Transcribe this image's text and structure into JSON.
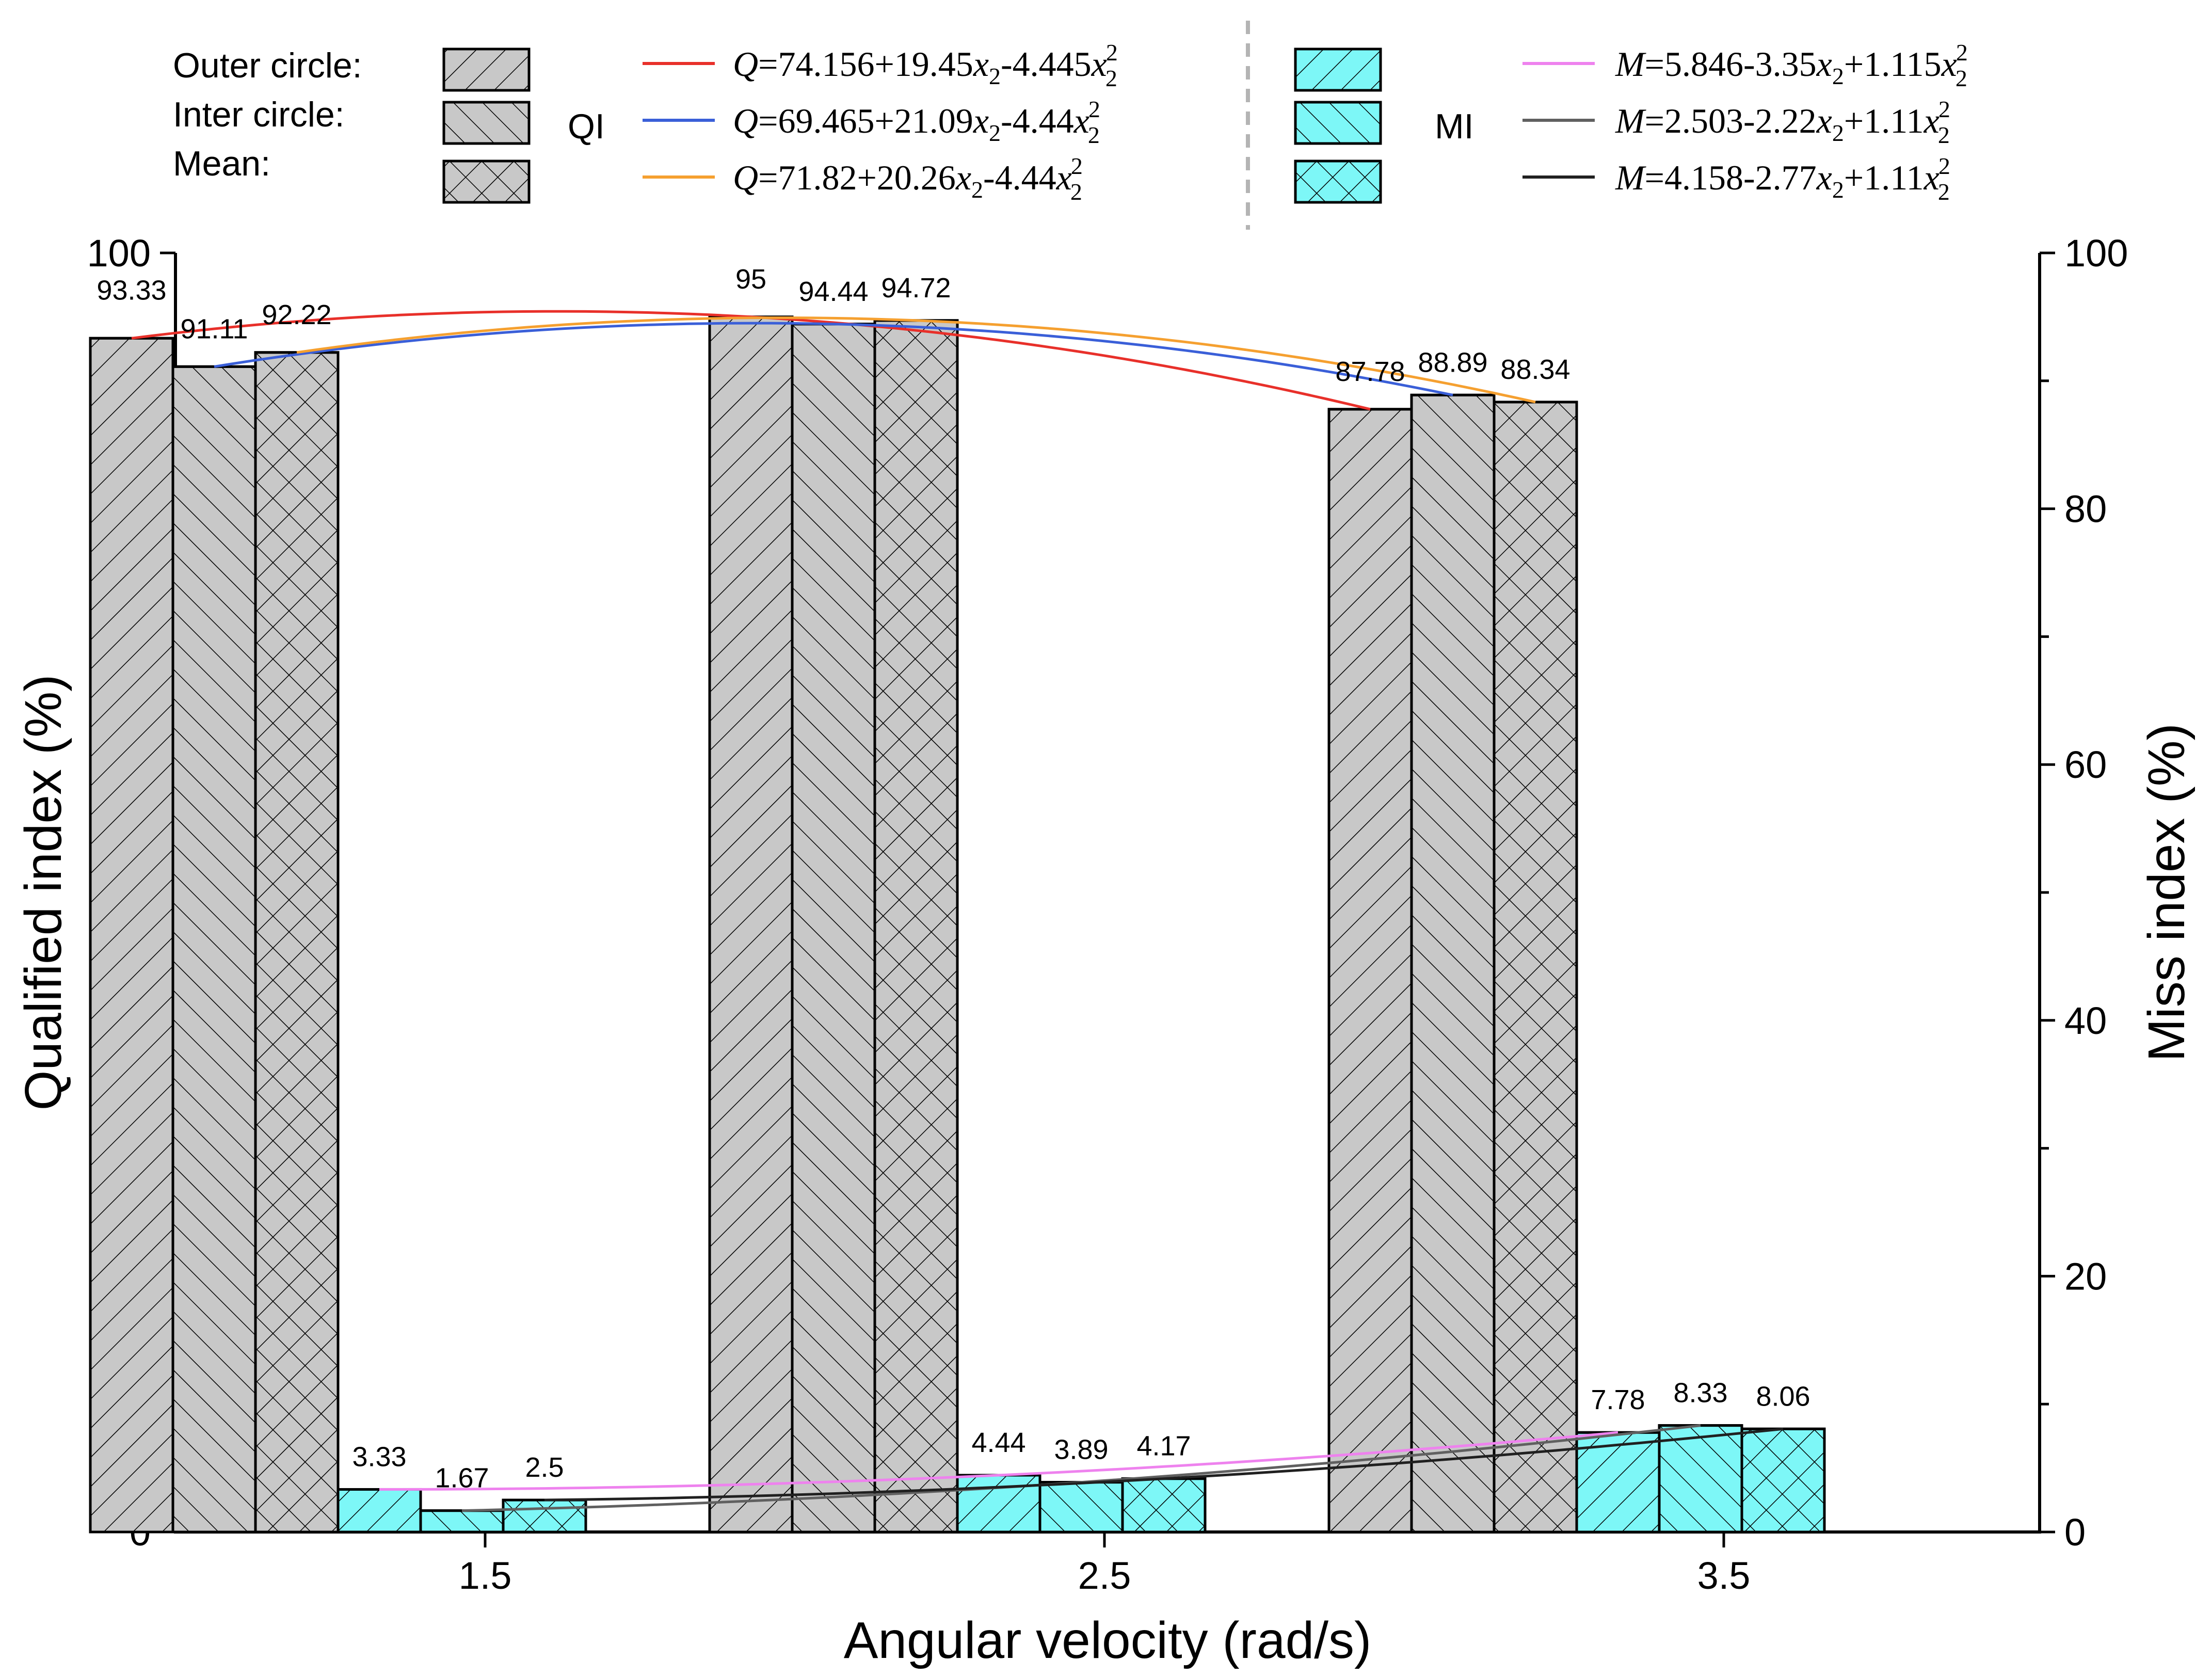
{
  "chart_data": {
    "type": "bar",
    "xlabel": "Angular velocity (rad/s)",
    "ylabel_left": "Qualified index (%)",
    "ylabel_right": "Miss index (%)",
    "ylim": [
      0,
      100
    ],
    "yticks": [
      "0",
      "20",
      "40",
      "60",
      "80",
      "100"
    ],
    "categories": [
      "1.5",
      "2.5",
      "3.5"
    ],
    "x_values": [
      1.5,
      2.5,
      3.5
    ],
    "series": [
      {
        "name": "QI Outer circle",
        "group": "QI",
        "pattern": "fwd",
        "values": [
          93.33,
          95,
          87.78
        ],
        "labels": [
          "93.33",
          "95",
          "87.78"
        ]
      },
      {
        "name": "QI Inter circle",
        "group": "QI",
        "pattern": "back",
        "values": [
          91.11,
          94.44,
          88.89
        ],
        "labels": [
          "91.11",
          "94.44",
          "88.89"
        ]
      },
      {
        "name": "QI Mean",
        "group": "QI",
        "pattern": "cross",
        "values": [
          92.22,
          94.72,
          88.34
        ],
        "labels": [
          "92.22",
          "94.72",
          "88.34"
        ]
      },
      {
        "name": "MI Outer circle",
        "group": "MI",
        "pattern": "fwd",
        "values": [
          3.33,
          4.44,
          7.78
        ],
        "labels": [
          "3.33",
          "4.44",
          "7.78"
        ]
      },
      {
        "name": "MI Inter circle",
        "group": "MI",
        "pattern": "back",
        "values": [
          1.67,
          3.89,
          8.33
        ],
        "labels": [
          "1.67",
          "3.89",
          "8.33"
        ]
      },
      {
        "name": "MI Mean",
        "group": "MI",
        "pattern": "cross",
        "values": [
          2.5,
          4.17,
          8.06
        ],
        "labels": [
          "2.5",
          "4.17",
          "8.06"
        ]
      }
    ],
    "fits": [
      {
        "var": "Q",
        "rhs": "=74.156+19.45",
        "mid": "-4.445",
        "c": 74.156,
        "b": 19.45,
        "a": -4.445,
        "color": "#e8302a",
        "anchor_series": 0
      },
      {
        "var": "Q",
        "rhs": "=69.465+21.09",
        "mid": "-4.44",
        "c": 69.465,
        "b": 21.09,
        "a": -4.44,
        "color": "#3a5fd8",
        "anchor_series": 1
      },
      {
        "var": "Q",
        "rhs": "=71.82+20.26",
        "mid": "-4.44",
        "c": 71.82,
        "b": 20.26,
        "a": -4.44,
        "color": "#f5a030",
        "anchor_series": 2
      },
      {
        "var": "M",
        "rhs": "=5.846-3.35",
        "mid": "+1.115",
        "c": 5.846,
        "b": -3.35,
        "a": 1.115,
        "color": "#ee82ee",
        "anchor_series": 3
      },
      {
        "var": "M",
        "rhs": "=2.503-2.22",
        "mid": "+1.11",
        "c": 2.503,
        "b": -2.22,
        "a": 1.11,
        "color": "#606060",
        "anchor_series": 4
      },
      {
        "var": "M",
        "rhs": "=4.158-2.77",
        "mid": "+1.11",
        "c": 4.158,
        "b": -2.77,
        "a": 1.11,
        "color": "#202020",
        "anchor_series": 5
      }
    ],
    "equation_symbol": "x",
    "equation_subscript": "2",
    "equation_superscript": "2",
    "legend": {
      "row_labels": [
        "Outer circle:",
        "Inter circle:",
        "Mean:"
      ],
      "qi_label": "QI",
      "mi_label": "MI"
    },
    "colors": {
      "qi_fill": "#c8c8c8",
      "mi_fill": "#7df7f7",
      "divider": "#b4b4b4"
    }
  }
}
